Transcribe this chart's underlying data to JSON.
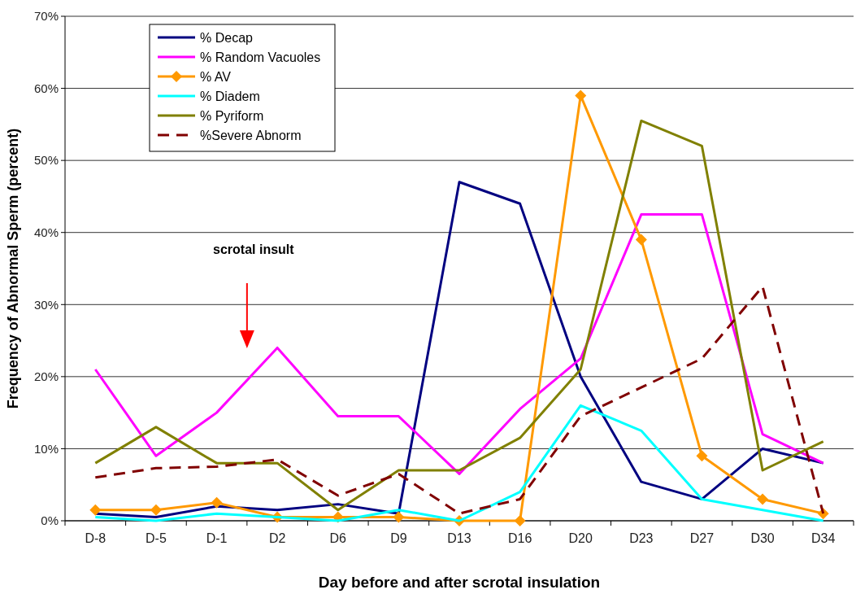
{
  "chart_data": {
    "type": "line",
    "xlabel": "Day before and after scrotal insulation",
    "ylabel": "Frequency of Abnormal Sperm (percent)",
    "categories": [
      "D-8",
      "D-5",
      "D-1",
      "D2",
      "D6",
      "D9",
      "D13",
      "D16",
      "D20",
      "D23",
      "D27",
      "D30",
      "D34"
    ],
    "ylim": [
      0,
      70
    ],
    "yticks": [
      {
        "value": 0,
        "label": "0%"
      },
      {
        "value": 10,
        "label": "10%"
      },
      {
        "value": 20,
        "label": "20%"
      },
      {
        "value": 30,
        "label": "30%"
      },
      {
        "value": 40,
        "label": "40%"
      },
      {
        "value": 50,
        "label": "50%"
      },
      {
        "value": 60,
        "label": "60%"
      },
      {
        "value": 70,
        "label": "70%"
      }
    ],
    "grid": "y",
    "legend": "top left",
    "marker": "none",
    "line_style": "solid",
    "annotations": [
      "scrotal insult"
    ],
    "series": [
      {
        "name": "% Decap",
        "color": "#000080",
        "values": [
          1,
          0.5,
          2,
          1.5,
          2.3,
          1,
          47,
          44,
          20,
          5.4,
          3,
          10,
          8
        ]
      },
      {
        "name": "% Random Vacuoles",
        "color": "#ff00ff",
        "values": [
          21,
          9,
          15,
          24,
          14.5,
          14.5,
          6.5,
          15.5,
          22.5,
          42.5,
          42.5,
          12,
          8
        ]
      },
      {
        "name": "% AV",
        "color": "#ff9900",
        "marker": "diamond",
        "values": [
          1.5,
          1.5,
          2.5,
          0.5,
          0.5,
          0.5,
          0,
          0,
          59,
          39,
          9,
          3,
          1
        ]
      },
      {
        "name": "% Diadem",
        "color": "#00ffff",
        "values": [
          0.5,
          0,
          1,
          0.5,
          0,
          1.5,
          0,
          4,
          16,
          12.5,
          3,
          1.5,
          0
        ]
      },
      {
        "name": "% Pyriform",
        "color": "#808000",
        "values": [
          8,
          13,
          8,
          8,
          1.5,
          7,
          7,
          11.5,
          21,
          55.5,
          52,
          7,
          11
        ]
      },
      {
        "name": "%Severe Abnorm",
        "color": "#800000",
        "line_style": "dashed",
        "values": [
          6,
          7.3,
          7.5,
          8.5,
          3.5,
          6.5,
          1,
          3,
          14.5,
          18.5,
          22.5,
          32.5,
          1
        ]
      }
    ]
  }
}
